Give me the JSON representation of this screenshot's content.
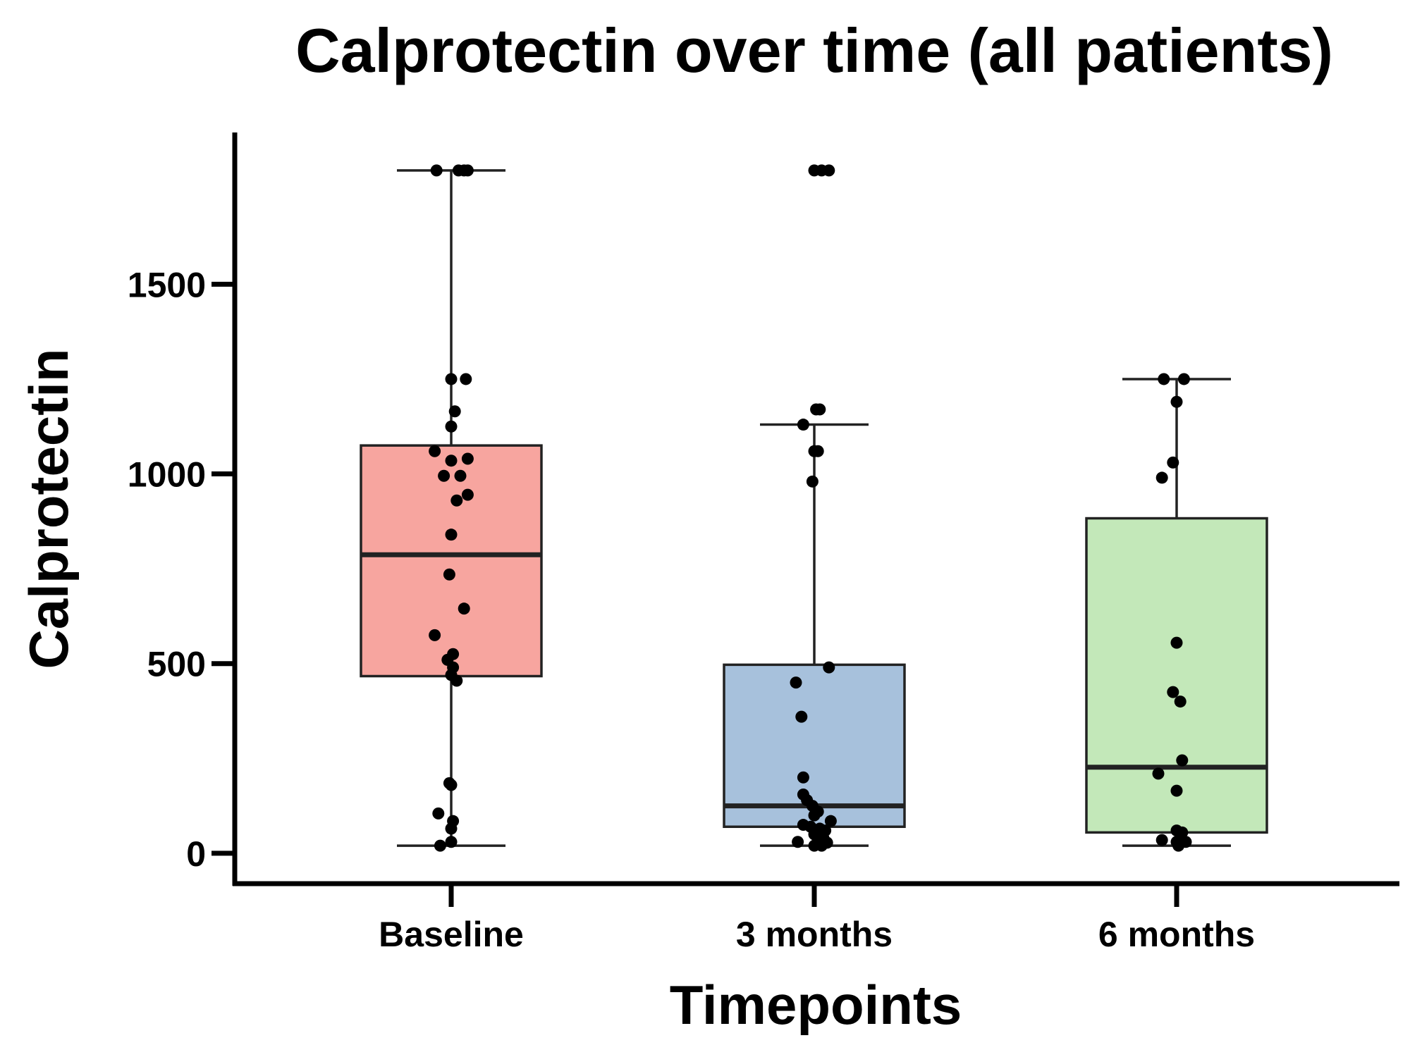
{
  "chart_data": {
    "type": "box",
    "title": "Calprotectin over time (all patients)",
    "xlabel": "Timepoints",
    "ylabel": "Calprotectin",
    "ylim": [
      -80,
      1900
    ],
    "yticks": [
      0,
      500,
      1000,
      1500
    ],
    "ytick_labels": [
      "0",
      "500",
      "1000",
      "1500"
    ],
    "grid": false,
    "legend": "none",
    "categories": [
      "Baseline",
      "3 months",
      "6 months"
    ],
    "series": [
      {
        "category": "Baseline",
        "color": "#F7A59F",
        "whisker_low": 20,
        "q1": 467,
        "median": 787,
        "q3": 1075,
        "whisker_high": 1800,
        "points": [
          {
            "offset": -0.08,
            "y": 1800
          },
          {
            "offset": 0.04,
            "y": 1800
          },
          {
            "offset": 0.07,
            "y": 1800
          },
          {
            "offset": 0.09,
            "y": 1800
          },
          {
            "offset": 0.0,
            "y": 1250
          },
          {
            "offset": 0.08,
            "y": 1250
          },
          {
            "offset": 0.02,
            "y": 1165
          },
          {
            "offset": 0.0,
            "y": 1125
          },
          {
            "offset": -0.09,
            "y": 1060
          },
          {
            "offset": 0.0,
            "y": 1035
          },
          {
            "offset": 0.09,
            "y": 1040
          },
          {
            "offset": -0.04,
            "y": 995
          },
          {
            "offset": 0.05,
            "y": 995
          },
          {
            "offset": 0.09,
            "y": 945
          },
          {
            "offset": 0.03,
            "y": 930
          },
          {
            "offset": 0.0,
            "y": 840
          },
          {
            "offset": -0.01,
            "y": 735
          },
          {
            "offset": 0.07,
            "y": 645
          },
          {
            "offset": -0.09,
            "y": 575
          },
          {
            "offset": 0.01,
            "y": 525
          },
          {
            "offset": -0.02,
            "y": 510
          },
          {
            "offset": 0.01,
            "y": 490
          },
          {
            "offset": 0.0,
            "y": 470
          },
          {
            "offset": 0.03,
            "y": 455
          },
          {
            "offset": -0.01,
            "y": 185
          },
          {
            "offset": 0.0,
            "y": 180
          },
          {
            "offset": -0.07,
            "y": 105
          },
          {
            "offset": 0.01,
            "y": 85
          },
          {
            "offset": 0.0,
            "y": 65
          },
          {
            "offset": 0.0,
            "y": 30
          },
          {
            "offset": -0.06,
            "y": 20
          }
        ]
      },
      {
        "category": "3 months",
        "color": "#A7C1DC",
        "whisker_low": 20,
        "q1": 70,
        "median": 125,
        "q3": 497,
        "whisker_high": 1130,
        "points": [
          {
            "offset": 0.0,
            "y": 1800
          },
          {
            "offset": 0.04,
            "y": 1800
          },
          {
            "offset": 0.08,
            "y": 1800
          },
          {
            "offset": 0.01,
            "y": 1170
          },
          {
            "offset": 0.03,
            "y": 1170
          },
          {
            "offset": -0.06,
            "y": 1130
          },
          {
            "offset": 0.0,
            "y": 1060
          },
          {
            "offset": 0.02,
            "y": 1060
          },
          {
            "offset": -0.01,
            "y": 980
          },
          {
            "offset": 0.08,
            "y": 490
          },
          {
            "offset": -0.1,
            "y": 450
          },
          {
            "offset": -0.07,
            "y": 360
          },
          {
            "offset": -0.06,
            "y": 200
          },
          {
            "offset": -0.06,
            "y": 155
          },
          {
            "offset": -0.04,
            "y": 140
          },
          {
            "offset": -0.01,
            "y": 125
          },
          {
            "offset": 0.02,
            "y": 110
          },
          {
            "offset": 0.0,
            "y": 100
          },
          {
            "offset": 0.09,
            "y": 85
          },
          {
            "offset": -0.06,
            "y": 75
          },
          {
            "offset": -0.02,
            "y": 70
          },
          {
            "offset": 0.03,
            "y": 65
          },
          {
            "offset": 0.06,
            "y": 60
          },
          {
            "offset": 0.0,
            "y": 50
          },
          {
            "offset": 0.05,
            "y": 40
          },
          {
            "offset": -0.09,
            "y": 30
          },
          {
            "offset": 0.02,
            "y": 30
          },
          {
            "offset": 0.07,
            "y": 28
          },
          {
            "offset": 0.0,
            "y": 20
          },
          {
            "offset": 0.04,
            "y": 20
          }
        ]
      },
      {
        "category": "6 months",
        "color": "#C3E8B9",
        "whisker_low": 20,
        "q1": 55,
        "median": 227,
        "q3": 883,
        "whisker_high": 1250,
        "points": [
          {
            "offset": -0.07,
            "y": 1250
          },
          {
            "offset": 0.04,
            "y": 1250
          },
          {
            "offset": 0.0,
            "y": 1190
          },
          {
            "offset": -0.02,
            "y": 1030
          },
          {
            "offset": -0.08,
            "y": 990
          },
          {
            "offset": 0.0,
            "y": 555
          },
          {
            "offset": -0.02,
            "y": 425
          },
          {
            "offset": 0.02,
            "y": 400
          },
          {
            "offset": 0.03,
            "y": 245
          },
          {
            "offset": -0.1,
            "y": 210
          },
          {
            "offset": 0.0,
            "y": 165
          },
          {
            "offset": 0.0,
            "y": 60
          },
          {
            "offset": 0.03,
            "y": 55
          },
          {
            "offset": 0.02,
            "y": 40
          },
          {
            "offset": -0.08,
            "y": 35
          },
          {
            "offset": 0.0,
            "y": 30
          },
          {
            "offset": 0.05,
            "y": 30
          },
          {
            "offset": 0.01,
            "y": 20
          }
        ]
      }
    ]
  }
}
